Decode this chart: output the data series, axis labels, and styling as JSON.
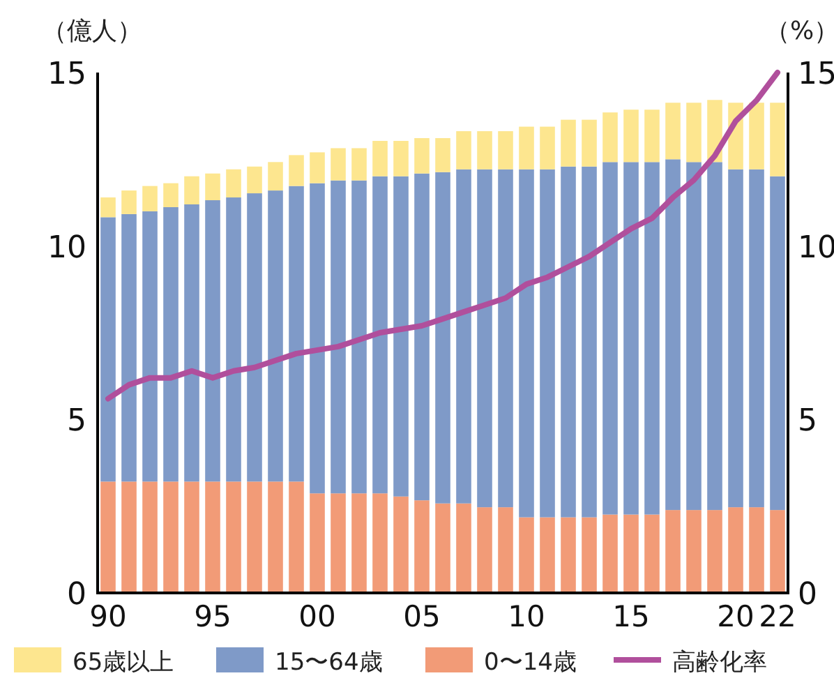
{
  "chart_data": {
    "type": "bar",
    "stacked": true,
    "ylabel": "（億人）",
    "y2label": "（%）",
    "categories": [
      "90",
      null,
      null,
      null,
      null,
      "95",
      null,
      null,
      null,
      null,
      "00",
      null,
      null,
      null,
      null,
      "05",
      null,
      null,
      null,
      null,
      "10",
      null,
      null,
      null,
      null,
      "15",
      null,
      null,
      null,
      null,
      "20",
      null,
      "22"
    ],
    "series": [
      {
        "name": "0〜14歳",
        "color": "#f29b77",
        "values": [
          3.21,
          3.21,
          3.21,
          3.21,
          3.21,
          3.21,
          3.21,
          3.21,
          3.21,
          3.21,
          2.87,
          2.87,
          2.87,
          2.87,
          2.78,
          2.67,
          2.58,
          2.58,
          2.47,
          2.47,
          2.18,
          2.18,
          2.18,
          2.18,
          2.26,
          2.26,
          2.26,
          2.39,
          2.39,
          2.39,
          2.47,
          2.47,
          2.39
        ]
      },
      {
        "name": "15〜64歳",
        "color": "#7f9ac8",
        "values": [
          7.62,
          7.71,
          7.79,
          7.91,
          7.99,
          8.11,
          8.19,
          8.31,
          8.39,
          8.52,
          8.94,
          9.02,
          9.02,
          9.14,
          9.23,
          9.42,
          9.55,
          9.63,
          9.74,
          9.74,
          10.03,
          10.03,
          10.11,
          10.11,
          10.16,
          10.16,
          10.16,
          10.11,
          10.03,
          10.03,
          9.74,
          9.74,
          9.62
        ]
      },
      {
        "name": "65歳以上",
        "color": "#fde68f",
        "values": [
          0.57,
          0.68,
          0.73,
          0.69,
          0.81,
          0.77,
          0.81,
          0.77,
          0.82,
          0.89,
          0.89,
          0.93,
          0.93,
          1.02,
          1.02,
          1.02,
          0.98,
          1.1,
          1.1,
          1.1,
          1.23,
          1.23,
          1.35,
          1.35,
          1.43,
          1.51,
          1.51,
          1.63,
          1.71,
          1.79,
          1.92,
          1.92,
          2.12
        ]
      },
      {
        "name": "高齢化率",
        "type": "line",
        "axis": "y2",
        "color": "#b04f9c",
        "values": [
          5.6,
          6.0,
          6.2,
          6.2,
          6.4,
          6.2,
          6.4,
          6.5,
          6.7,
          6.9,
          7.0,
          7.1,
          7.3,
          7.5,
          7.6,
          7.7,
          7.9,
          8.1,
          8.3,
          8.5,
          8.9,
          9.1,
          9.4,
          9.7,
          10.1,
          10.5,
          10.8,
          11.4,
          11.9,
          12.6,
          13.6,
          14.2,
          15.0
        ]
      }
    ],
    "ylim": [
      0,
      15
    ],
    "yticks": [
      0,
      5,
      10,
      15
    ],
    "y2lim": [
      0,
      15
    ],
    "y2ticks": [
      0,
      5,
      10,
      15
    ],
    "legend": "bottom",
    "grid": false,
    "marker": "none"
  }
}
